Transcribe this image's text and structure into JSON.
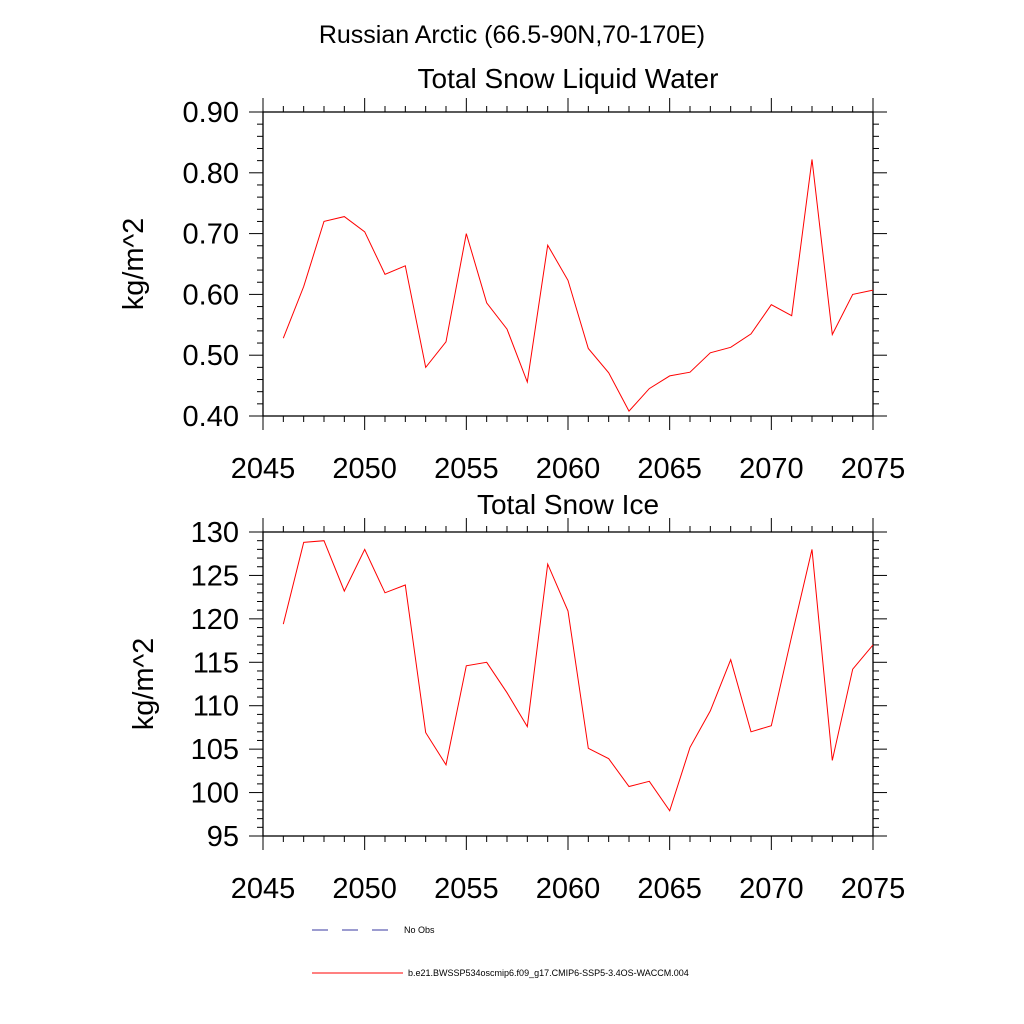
{
  "suptitle": "Russian Arctic (66.5-90N,70-170E)",
  "colors": {
    "series": "#ff0000",
    "no_obs": "#3a3aa0",
    "axis": "#000000"
  },
  "chart_data": [
    {
      "type": "line",
      "title": "Total Snow Liquid Water",
      "xlabel": "",
      "ylabel": "kg/m^2",
      "xlim": [
        2045,
        2075
      ],
      "ylim": [
        0.4,
        0.9
      ],
      "xticks": [
        2045,
        2050,
        2055,
        2060,
        2065,
        2070,
        2075
      ],
      "xticklabels": [
        "2045",
        "2050",
        "2055",
        "2060",
        "2065",
        "2070",
        "2075"
      ],
      "yticks": [
        0.4,
        0.5,
        0.6,
        0.7,
        0.8,
        0.9
      ],
      "yticklabels": [
        "0.40",
        "0.50",
        "0.60",
        "0.70",
        "0.80",
        "0.90"
      ],
      "series": [
        {
          "name": "b.e21.BWSSP534oscmip6.f09_g17.CMIP6-SSP5-3.4OS-WACCM.004",
          "x": [
            2046,
            2047,
            2048,
            2049,
            2050,
            2051,
            2052,
            2053,
            2054,
            2055,
            2056,
            2057,
            2058,
            2059,
            2060,
            2061,
            2062,
            2063,
            2064,
            2065,
            2066,
            2067,
            2068,
            2069,
            2070,
            2071,
            2072,
            2073,
            2074,
            2075
          ],
          "values": [
            0.528,
            0.613,
            0.72,
            0.728,
            0.703,
            0.633,
            0.647,
            0.48,
            0.522,
            0.7,
            0.586,
            0.543,
            0.456,
            0.681,
            0.623,
            0.511,
            0.471,
            0.408,
            0.445,
            0.466,
            0.472,
            0.504,
            0.513,
            0.535,
            0.583,
            0.565,
            0.822,
            0.534,
            0.6,
            0.607
          ]
        }
      ]
    },
    {
      "type": "line",
      "title": "Total Snow Ice",
      "xlabel": "",
      "ylabel": "kg/m^2",
      "xlim": [
        2045,
        2075
      ],
      "ylim": [
        95,
        130
      ],
      "xticks": [
        2045,
        2050,
        2055,
        2060,
        2065,
        2070,
        2075
      ],
      "xticklabels": [
        "2045",
        "2050",
        "2055",
        "2060",
        "2065",
        "2070",
        "2075"
      ],
      "yticks": [
        95,
        100,
        105,
        110,
        115,
        120,
        125,
        130
      ],
      "yticklabels": [
        "95",
        "100",
        "105",
        "110",
        "115",
        "120",
        "125",
        "130"
      ],
      "series": [
        {
          "name": "b.e21.BWSSP534oscmip6.f09_g17.CMIP6-SSP5-3.4OS-WACCM.004",
          "x": [
            2046,
            2047,
            2048,
            2049,
            2050,
            2051,
            2052,
            2053,
            2054,
            2055,
            2056,
            2057,
            2058,
            2059,
            2060,
            2061,
            2062,
            2063,
            2064,
            2065,
            2066,
            2067,
            2068,
            2069,
            2070,
            2071,
            2072,
            2073,
            2074,
            2075
          ],
          "values": [
            119.4,
            128.8,
            129.0,
            123.2,
            128.0,
            123.0,
            123.9,
            106.9,
            103.2,
            114.6,
            115.0,
            111.5,
            107.6,
            126.3,
            120.9,
            105.1,
            103.9,
            100.7,
            101.3,
            97.9,
            105.2,
            109.4,
            115.3,
            107.0,
            107.7,
            118.0,
            128.0,
            103.7,
            114.2,
            117.0
          ]
        }
      ]
    }
  ],
  "legend": [
    {
      "label": "No Obs",
      "style": "dashed"
    },
    {
      "label": "b.e21.BWSSP534oscmip6.f09_g17.CMIP6-SSP5-3.4OS-WACCM.004",
      "style": "solid"
    }
  ]
}
